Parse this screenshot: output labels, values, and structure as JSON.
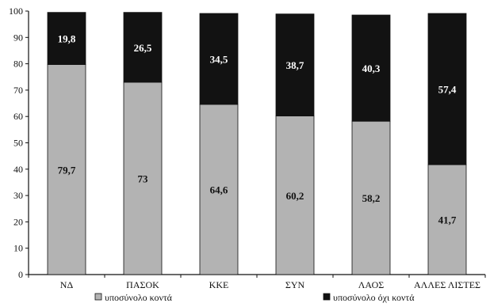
{
  "chart_data": {
    "type": "bar",
    "stacked": true,
    "title": "",
    "xlabel": "",
    "ylabel": "",
    "ylim": [
      0,
      100
    ],
    "yticks": [
      0,
      10,
      20,
      30,
      40,
      50,
      60,
      70,
      80,
      90,
      100
    ],
    "grid": false,
    "legend_position": "bottom",
    "categories": [
      "ΝΔ",
      "ΠΑΣΟΚ",
      "ΚΚΕ",
      "ΣΥΝ",
      "ΛΑΟΣ",
      "ΑΛΛΕΣ ΛΙΣΤΕΣ"
    ],
    "series": [
      {
        "name": "υποσύνολο κοντά",
        "color": "#b3b3b3",
        "values": [
          79.7,
          73,
          64.6,
          60.2,
          58.2,
          41.7
        ],
        "labels": [
          "79,7",
          "73",
          "64,6",
          "60,2",
          "58,2",
          "41,7"
        ],
        "label_color": "#111111"
      },
      {
        "name": "υποσύνολο όχι κοντά",
        "color": "#121212",
        "values": [
          19.8,
          26.5,
          34.5,
          38.7,
          40.3,
          57.4
        ],
        "labels": [
          "19,8",
          "26,5",
          "34,5",
          "38,7",
          "40,3",
          "57,4"
        ],
        "label_color": "#ffffff"
      }
    ]
  }
}
